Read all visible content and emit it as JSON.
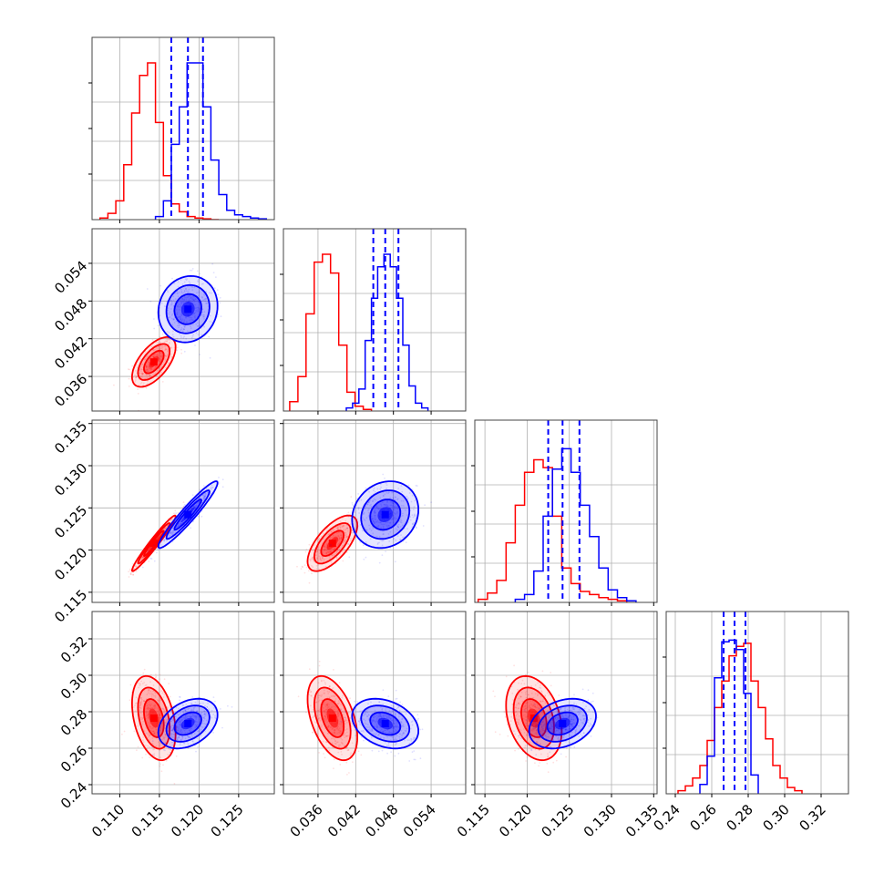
{
  "chart_data": {
    "type": "corner",
    "title": "",
    "grid": true,
    "colors": {
      "series_a": "#ff0000",
      "series_b": "#0000ff"
    },
    "parameters": [
      {
        "index": 0,
        "label": "",
        "range": [
          0.1065,
          0.1295
        ],
        "ticks": [
          0.11,
          0.115,
          0.12,
          0.125
        ],
        "tick_labels": [
          "0.110",
          "0.115",
          "0.120",
          "0.125"
        ]
      },
      {
        "index": 1,
        "label": "",
        "range": [
          0.0305,
          0.0595
        ],
        "ticks": [
          0.036,
          0.042,
          0.048,
          0.054
        ],
        "tick_labels": [
          "0.036",
          "0.042",
          "0.048",
          "0.054"
        ]
      },
      {
        "index": 2,
        "label": "",
        "range": [
          0.1138,
          0.1354
        ],
        "ticks": [
          0.115,
          0.12,
          0.125,
          0.13,
          0.135
        ],
        "tick_labels": [
          "0.115",
          "0.120",
          "0.125",
          "0.130",
          "0.135"
        ]
      },
      {
        "index": 3,
        "label": "",
        "range": [
          0.235,
          0.335
        ],
        "ticks": [
          0.24,
          0.26,
          0.28,
          0.3,
          0.32
        ],
        "tick_labels": [
          "0.24",
          "0.26",
          "0.28",
          "0.30",
          "0.32"
        ]
      }
    ],
    "series": [
      {
        "color": "#ff0000",
        "means": [
          0.1143,
          0.0383,
          0.1208,
          0.2765
        ],
        "sigmas": [
          0.00125,
          0.0018,
          0.0015,
          0.0105
        ],
        "correlations": [
          [
            0,
            1,
            0.6
          ],
          [
            0,
            2,
            0.97
          ],
          [
            1,
            2,
            0.65
          ],
          [
            0,
            3,
            -0.35
          ],
          [
            1,
            3,
            -0.45
          ],
          [
            2,
            3,
            -0.3
          ]
        ],
        "quantiles": null,
        "histograms": [
          {
            "edges": [
              0.1075,
              0.1085,
              0.1095,
              0.1105,
              0.1115,
              0.1125,
              0.1135,
              0.1145,
              0.1155,
              0.1165,
              0.1175,
              0.1185,
              0.1195,
              0.1205,
              0.1215,
              0.1225
            ],
            "counts": [
              0.01,
              0.04,
              0.12,
              0.35,
              0.68,
              0.92,
              1.0,
              0.62,
              0.28,
              0.1,
              0.05,
              0.02,
              0.01,
              0.005,
              0.0
            ]
          },
          {
            "edges": [
              0.0315,
              0.0328,
              0.0341,
              0.0354,
              0.0367,
              0.038,
              0.0393,
              0.0406,
              0.0419,
              0.0432,
              0.0445
            ],
            "counts": [
              0.06,
              0.22,
              0.62,
              0.95,
              1.0,
              0.88,
              0.42,
              0.12,
              0.03,
              0.01
            ]
          },
          {
            "edges": [
              0.1142,
              0.1153,
              0.1164,
              0.1175,
              0.1186,
              0.1197,
              0.1208,
              0.1219,
              0.123,
              0.1241,
              0.1252,
              0.1263,
              0.1274,
              0.1285,
              0.1296,
              0.1307,
              0.1318
            ],
            "counts": [
              0.02,
              0.06,
              0.14,
              0.38,
              0.62,
              0.83,
              0.91,
              0.86,
              0.55,
              0.22,
              0.12,
              0.07,
              0.05,
              0.03,
              0.02,
              0.01
            ]
          },
          {
            "edges": [
              0.2415,
              0.2455,
              0.2495,
              0.2535,
              0.2575,
              0.2615,
              0.2655,
              0.2695,
              0.2735,
              0.2775,
              0.2815,
              0.2855,
              0.2895,
              0.2935,
              0.2975,
              0.3015,
              0.3055,
              0.3095
            ],
            "counts": [
              0.02,
              0.05,
              0.1,
              0.18,
              0.34,
              0.55,
              0.72,
              0.88,
              0.94,
              0.96,
              0.72,
              0.55,
              0.35,
              0.18,
              0.1,
              0.04,
              0.02
            ]
          }
        ]
      },
      {
        "color": "#0000ff",
        "means": [
          0.1186,
          0.0467,
          0.1242,
          0.2735
        ],
        "sigmas": [
          0.0017,
          0.0024,
          0.0018,
          0.0062
        ],
        "correlations": [
          [
            0,
            1,
            0.1
          ],
          [
            0,
            2,
            0.95
          ],
          [
            1,
            2,
            0.15
          ],
          [
            0,
            3,
            0.35
          ],
          [
            1,
            3,
            -0.3
          ],
          [
            2,
            3,
            0.3
          ]
        ],
        "quantiles": [
          [
            0.1165,
            0.1186,
            0.1205
          ],
          [
            0.0448,
            0.0467,
            0.0488
          ],
          [
            0.1225,
            0.1242,
            0.1262
          ],
          [
            0.2665,
            0.2725,
            0.2785
          ]
        ],
        "histograms": [
          {
            "edges": [
              0.1145,
              0.1155,
              0.1165,
              0.1175,
              0.1185,
              0.1195,
              0.1205,
              0.1215,
              0.1225,
              0.1235,
              0.1245,
              0.1255,
              0.1265,
              0.1275,
              0.1285
            ],
            "counts": [
              0.02,
              0.12,
              0.48,
              0.72,
              1.0,
              1.0,
              0.72,
              0.38,
              0.16,
              0.06,
              0.03,
              0.02,
              0.01,
              0.005
            ]
          },
          {
            "edges": [
              0.0405,
              0.0415,
              0.0425,
              0.0435,
              0.0445,
              0.0455,
              0.0465,
              0.0475,
              0.0485,
              0.0495,
              0.0505,
              0.0515,
              0.0525,
              0.0535
            ],
            "counts": [
              0.02,
              0.05,
              0.14,
              0.45,
              0.72,
              0.92,
              1.0,
              0.92,
              0.72,
              0.42,
              0.16,
              0.05,
              0.02
            ]
          },
          {
            "edges": [
              0.1186,
              0.1197,
              0.1208,
              0.1219,
              0.123,
              0.1241,
              0.1252,
              0.1263,
              0.1274,
              0.1285,
              0.1296,
              0.1307,
              0.1318,
              0.1329
            ],
            "counts": [
              0.02,
              0.05,
              0.2,
              0.55,
              0.85,
              0.98,
              0.83,
              0.62,
              0.42,
              0.22,
              0.08,
              0.03,
              0.01
            ]
          },
          {
            "edges": [
              0.2535,
              0.2575,
              0.2615,
              0.2655,
              0.2695,
              0.2735,
              0.2775,
              0.2815,
              0.2855
            ],
            "counts": [
              0.06,
              0.24,
              0.74,
              0.97,
              0.98,
              0.92,
              0.64,
              0.12
            ]
          }
        ]
      }
    ]
  }
}
